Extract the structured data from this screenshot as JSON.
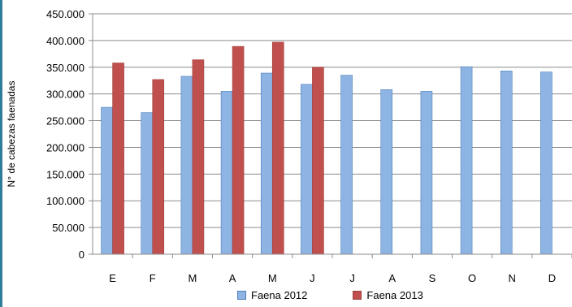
{
  "chart_data": {
    "type": "bar",
    "categories": [
      "E",
      "F",
      "M",
      "A",
      "M",
      "J",
      "J",
      "A",
      "S",
      "O",
      "N",
      "D"
    ],
    "series": [
      {
        "name": "Faena 2012",
        "color": "#8eb4e3",
        "stroke": "#4a7ebb",
        "values": [
          275000,
          265000,
          333000,
          305000,
          339000,
          318000,
          335000,
          308000,
          305000,
          351000,
          343000,
          341000
        ]
      },
      {
        "name": "Faena 2013",
        "color": "#c0504d",
        "stroke": "#a0403d",
        "values": [
          358000,
          327000,
          364000,
          389000,
          397000,
          350000,
          null,
          null,
          null,
          null,
          null,
          null
        ]
      }
    ],
    "ylabel": "N° de cabezas faenadas",
    "ylim": [
      0,
      450000
    ],
    "yticks": [
      0,
      50000,
      100000,
      150000,
      200000,
      250000,
      300000,
      350000,
      400000,
      450000
    ],
    "ytick_labels": [
      "0",
      "50.000",
      "100.000",
      "150.000",
      "200.000",
      "250.000",
      "300.000",
      "350.000",
      "400.000",
      "450.000"
    ],
    "grid": true,
    "legend_position": "bottom"
  }
}
